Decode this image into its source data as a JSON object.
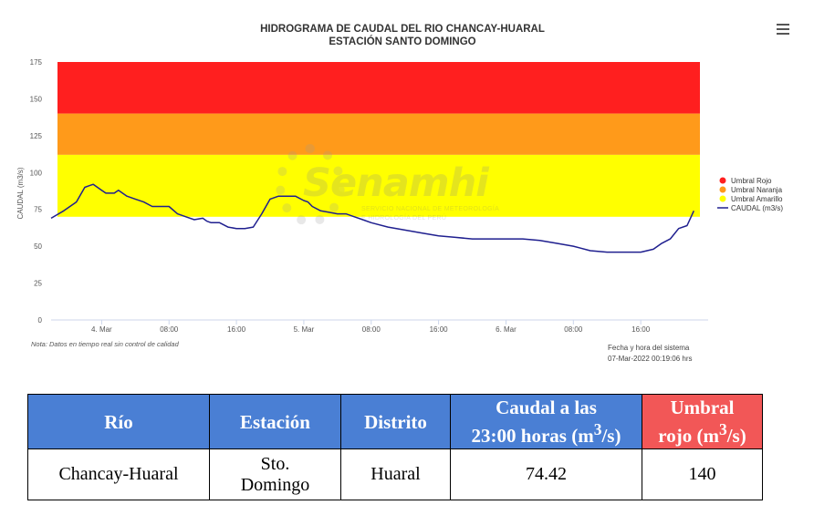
{
  "chart_data": {
    "type": "line",
    "title": "HIDROGRAMA DE CAUDAL DEL RIO CHANCAY-HUARAL",
    "subtitle": "ESTACIÓN SANTO DOMINGO",
    "ylabel": "CAUDAL (m3/s)",
    "ylim": [
      0,
      175
    ],
    "yticks": [
      "0",
      "25",
      "50",
      "75",
      "100",
      "125",
      "150",
      "175"
    ],
    "x_tick_labels": [
      "4. Mar",
      "08:00",
      "16:00",
      "5. Mar",
      "08:00",
      "16:00",
      "6. Mar",
      "08:00",
      "16:00"
    ],
    "x_tick_hours": [
      0,
      8,
      16,
      24,
      32,
      40,
      48,
      56,
      64
    ],
    "x_range_hours": [
      -6,
      72
    ],
    "x_reference": "hours from 4. Mar 00:00",
    "bands": [
      {
        "name": "Umbral Rojo",
        "from": 140,
        "to": 175,
        "color": "#ff1f1f"
      },
      {
        "name": "Umbral Naranja",
        "from": 112,
        "to": 140,
        "color": "#ff9a1a"
      },
      {
        "name": "Umbral Amarillo",
        "from": 70,
        "to": 112,
        "color": "#ffff00"
      }
    ],
    "series": [
      {
        "name": "CAUDAL (m3/s)",
        "color": "#1f1f8f",
        "x": [
          -6,
          -4.5,
          -3,
          -2,
          -1.5,
          -1,
          0,
          0.5,
          1,
          1.5,
          2,
          3,
          4,
          5,
          6,
          7,
          8,
          9,
          10,
          11,
          12,
          12.5,
          13,
          14,
          15,
          16,
          17,
          18,
          19,
          20,
          21,
          22,
          23,
          24,
          24.5,
          25,
          26,
          27,
          28,
          29,
          30,
          31,
          32,
          34,
          36,
          38,
          40,
          42,
          44,
          46,
          48,
          50,
          52,
          54,
          56,
          58,
          60,
          62,
          64,
          65.5,
          66.5,
          67.5,
          68.5,
          69.5,
          70.3
        ],
        "y": [
          69,
          74,
          80,
          90,
          91,
          92,
          88,
          86,
          86,
          86,
          88,
          84,
          82,
          80,
          77,
          77,
          77,
          72,
          70,
          68,
          69,
          67,
          66,
          66,
          63,
          62,
          62,
          63,
          72,
          82,
          84,
          84,
          84,
          81,
          80,
          77,
          74,
          73,
          72,
          72,
          70,
          68,
          66,
          63,
          61,
          59,
          57,
          56,
          55,
          55,
          55,
          55,
          54,
          52,
          50,
          47,
          46,
          46,
          46,
          48,
          52,
          55,
          62,
          64,
          74
        ]
      }
    ],
    "note": "Nota: Datos en tiempo real sin control de calidad",
    "system_label": "Fecha y hora del sistema",
    "system_time": "07-Mar-2022 00:19:06 hrs"
  },
  "watermark": {
    "brand": "Senamhi",
    "line1": "SERVICIO NACIONAL DE METEOROLOGÍA",
    "line2": "E HIDROLOGÍA DEL PERÚ"
  },
  "table": {
    "headers": [
      "Río",
      "Estación",
      "Distrito",
      "Caudal a las",
      "23:00 horas (m",
      "3",
      "/s)",
      "Umbral",
      "rojo (m",
      "3",
      "/s)"
    ],
    "row": [
      "Chancay-Huaral",
      "Sto.",
      "Domingo",
      "Huaral",
      "74.42",
      "140"
    ]
  },
  "colors": {
    "header_blue": "#4a7fd4",
    "header_red": "#f25757",
    "line": "#1f1f8f"
  },
  "icons": {
    "menu": "hamburger-menu-icon"
  }
}
